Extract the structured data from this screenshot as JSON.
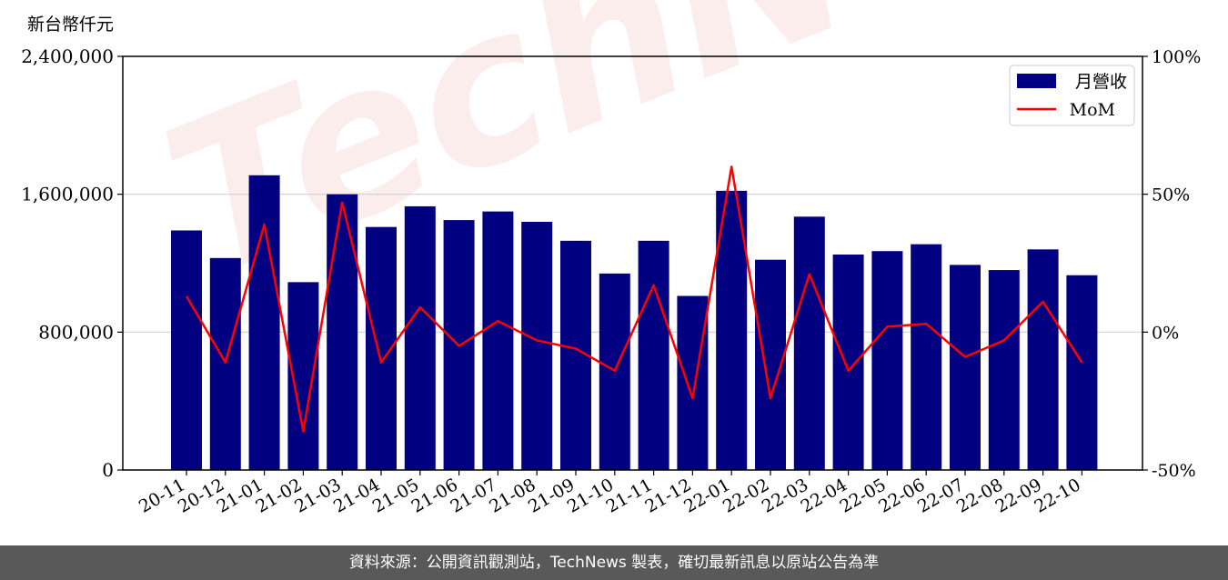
{
  "chart_data": {
    "type": "bar",
    "y_unit_label": "新台幣仟元",
    "categories": [
      "20-11",
      "20-12",
      "21-01",
      "21-02",
      "21-03",
      "21-04",
      "21-05",
      "21-06",
      "21-07",
      "21-08",
      "21-09",
      "21-10",
      "21-11",
      "21-12",
      "22-01",
      "22-02",
      "22-03",
      "22-04",
      "22-05",
      "22-06",
      "22-07",
      "22-08",
      "22-09",
      "22-10"
    ],
    "series": [
      {
        "name": "月營收",
        "type": "bar",
        "axis": "left",
        "color": "#000080",
        "values": [
          1390000,
          1230000,
          1710000,
          1090000,
          1600000,
          1410000,
          1530000,
          1450000,
          1500000,
          1440000,
          1330000,
          1140000,
          1330000,
          1010000,
          1620000,
          1220000,
          1470000,
          1250000,
          1270000,
          1310000,
          1190000,
          1160000,
          1280000,
          1130000
        ]
      },
      {
        "name": "MoM",
        "type": "line",
        "axis": "right",
        "color": "#ff0000",
        "values": [
          13,
          -11,
          39,
          -36,
          47,
          -11,
          9,
          -5,
          4,
          -3,
          -6,
          -14,
          17,
          -24,
          60,
          -24,
          21,
          -14,
          2,
          3,
          -9,
          -3,
          11,
          -11
        ]
      }
    ],
    "y_left": {
      "range": [
        0,
        2400000
      ],
      "ticks": [
        0,
        800000,
        1600000,
        2400000
      ],
      "tick_labels": [
        "0",
        "800,000",
        "1,600,000",
        "2,400,000"
      ]
    },
    "y_right": {
      "range": [
        -50,
        100
      ],
      "ticks": [
        -50,
        0,
        50,
        100
      ],
      "tick_labels": [
        "-50%",
        "0%",
        "50%",
        "100%"
      ]
    },
    "grid": "horizontal",
    "legend_position": "top-right"
  },
  "watermark": "TechNews",
  "footer": "資料來源：公開資訊觀測站，TechNews 製表，確切最新訊息以原站公告為準"
}
